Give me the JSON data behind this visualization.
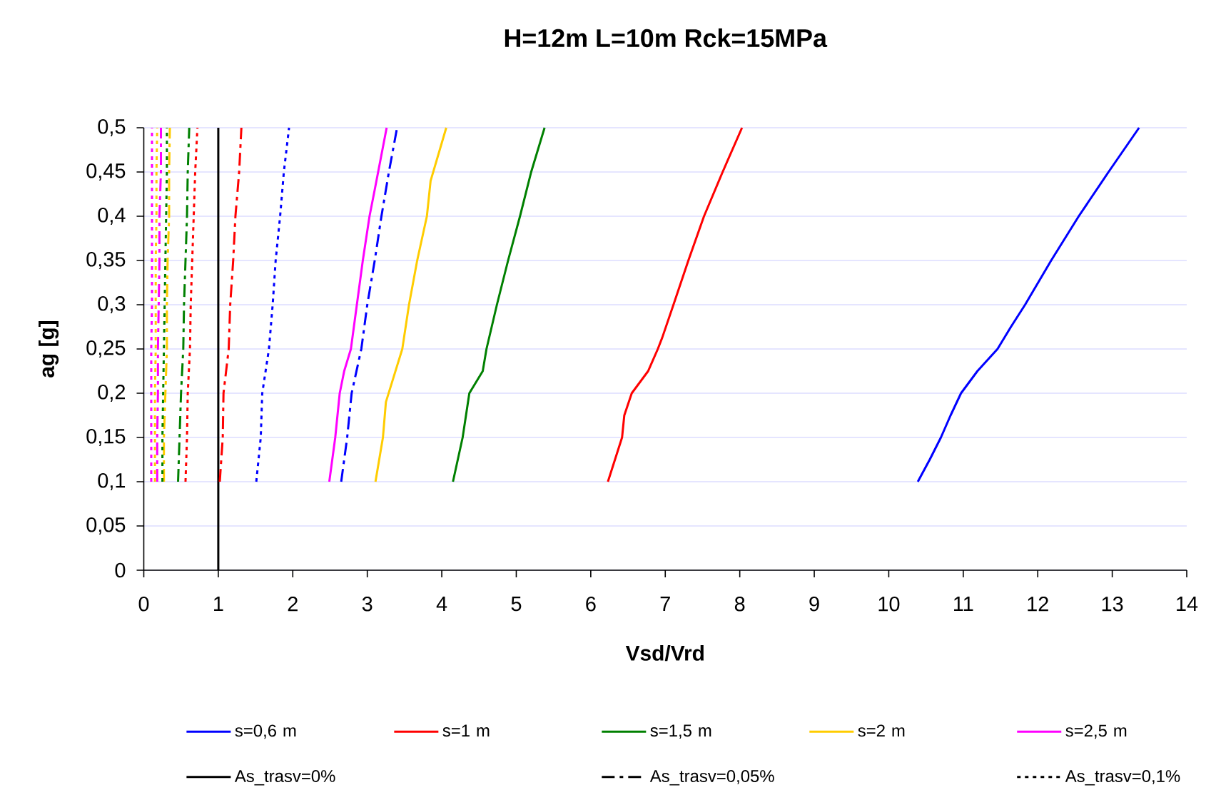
{
  "chart_data": {
    "type": "line",
    "title": "H=12m L=10m Rck=15MPa",
    "xlabel": "Vsd/Vrd",
    "ylabel": "ag [g]",
    "xlim": [
      0,
      14
    ],
    "ylim": [
      0,
      0.5
    ],
    "xticks": [
      0,
      1,
      2,
      3,
      4,
      5,
      6,
      7,
      8,
      9,
      10,
      11,
      12,
      13,
      14
    ],
    "yticks": [
      {
        "value": 0,
        "label": "0"
      },
      {
        "value": 0.05,
        "label": "0,05"
      },
      {
        "value": 0.1,
        "label": "0,1"
      },
      {
        "value": 0.15,
        "label": "0,15"
      },
      {
        "value": 0.2,
        "label": "0,2"
      },
      {
        "value": 0.25,
        "label": "0,25"
      },
      {
        "value": 0.3,
        "label": "0,3"
      },
      {
        "value": 0.35,
        "label": "0,35"
      },
      {
        "value": 0.4,
        "label": "0,4"
      },
      {
        "value": 0.45,
        "label": "0,45"
      },
      {
        "value": 0.5,
        "label": "0,5"
      }
    ],
    "grid": "y",
    "legend": "bottom",
    "marker": "none",
    "series": [
      {
        "name": "s=0,6 m",
        "color": "#0000ff",
        "line_style": "solid",
        "x": [
          10.39,
          10.55,
          10.7,
          10.83,
          10.97,
          11.19,
          11.46,
          11.64,
          11.83,
          12.18,
          12.55,
          12.95,
          13.36
        ],
        "values": [
          0.1,
          0.125,
          0.15,
          0.175,
          0.2,
          0.225,
          0.25,
          0.275,
          0.3,
          0.35,
          0.4,
          0.45,
          0.5
        ]
      },
      {
        "name": "s=1 m",
        "color": "#ff0000",
        "line_style": "solid",
        "x": [
          6.23,
          6.42,
          6.45,
          6.55,
          6.77,
          6.9,
          6.96,
          7.11,
          7.31,
          7.52,
          7.77,
          8.03
        ],
        "values": [
          0.1,
          0.15,
          0.175,
          0.2,
          0.225,
          0.25,
          0.263,
          0.3,
          0.35,
          0.4,
          0.45,
          0.5
        ]
      },
      {
        "name": "s=1,5 m",
        "color": "#008000",
        "line_style": "solid",
        "x": [
          4.15,
          4.28,
          4.37,
          4.55,
          4.6,
          4.74,
          4.89,
          5.05,
          5.2,
          5.38
        ],
        "values": [
          0.1,
          0.15,
          0.2,
          0.225,
          0.25,
          0.3,
          0.35,
          0.4,
          0.45,
          0.5
        ]
      },
      {
        "name": "s=2 m",
        "color": "#ffcc00",
        "line_style": "solid",
        "x": [
          3.11,
          3.21,
          3.25,
          3.47,
          3.56,
          3.67,
          3.8,
          3.85,
          4.06
        ],
        "values": [
          0.1,
          0.15,
          0.19,
          0.25,
          0.3,
          0.35,
          0.4,
          0.44,
          0.5
        ]
      },
      {
        "name": "s=2,5 m",
        "color": "#ff00ff",
        "line_style": "solid",
        "x": [
          2.49,
          2.57,
          2.63,
          2.69,
          2.78,
          2.86,
          2.94,
          3.03,
          3.1,
          3.26
        ],
        "values": [
          0.1,
          0.15,
          0.2,
          0.225,
          0.25,
          0.3,
          0.35,
          0.4,
          0.43,
          0.5
        ]
      },
      {
        "name": "As_trasv=0%",
        "color": "#000000",
        "line_style": "solid",
        "x": [
          1,
          1
        ],
        "values": [
          0,
          0.5
        ]
      },
      {
        "name": "As_trasv=0,05%",
        "color": "#000000",
        "line_style": "dashed",
        "x": [
          null,
          null
        ],
        "values": [
          null,
          null
        ]
      },
      {
        "name": "As_trasv=0,1%",
        "color": "#000000",
        "line_style": "dotted",
        "x": [
          null,
          null
        ],
        "values": [
          null,
          null
        ]
      },
      {
        "color": "#0000ff",
        "line_style": "dashed",
        "x": [
          2.65,
          2.73,
          2.79,
          2.92,
          3.0,
          3.1,
          3.19,
          3.29,
          3.4
        ],
        "values": [
          0.1,
          0.15,
          0.2,
          0.25,
          0.3,
          0.35,
          0.4,
          0.45,
          0.5
        ]
      },
      {
        "color": "#ff0000",
        "line_style": "dashed",
        "x": [
          1.02,
          1.06,
          1.07,
          1.14,
          1.16,
          1.2,
          1.23,
          1.28,
          1.31
        ],
        "values": [
          0.1,
          0.15,
          0.2,
          0.25,
          0.3,
          0.35,
          0.4,
          0.45,
          0.5
        ]
      },
      {
        "color": "#008000",
        "line_style": "dashed",
        "x": [
          0.46,
          0.48,
          0.5,
          0.53,
          0.54,
          0.56,
          0.58,
          0.59,
          0.61
        ],
        "values": [
          0.1,
          0.15,
          0.2,
          0.25,
          0.3,
          0.35,
          0.4,
          0.45,
          0.5
        ]
      },
      {
        "color": "#ffcc00",
        "line_style": "dashed",
        "x": [
          0.27,
          0.27,
          0.29,
          0.31,
          0.31,
          0.32,
          0.34,
          0.34,
          0.35
        ],
        "values": [
          0.1,
          0.15,
          0.2,
          0.25,
          0.3,
          0.35,
          0.4,
          0.45,
          0.5
        ]
      },
      {
        "color": "#ff00ff",
        "line_style": "dashed",
        "x": [
          0.18,
          0.18,
          0.19,
          0.19,
          0.2,
          0.21,
          0.21,
          0.23,
          0.23
        ],
        "values": [
          0.1,
          0.15,
          0.2,
          0.25,
          0.3,
          0.35,
          0.4,
          0.45,
          0.5
        ]
      },
      {
        "color": "#0000ff",
        "line_style": "dotted",
        "x": [
          1.51,
          1.57,
          1.59,
          1.68,
          1.73,
          1.77,
          1.83,
          1.88,
          1.95
        ],
        "values": [
          0.1,
          0.15,
          0.2,
          0.25,
          0.3,
          0.35,
          0.4,
          0.45,
          0.5
        ]
      },
      {
        "color": "#ff0000",
        "line_style": "dotted",
        "x": [
          0.56,
          0.58,
          0.59,
          0.62,
          0.63,
          0.65,
          0.67,
          0.69,
          0.72
        ],
        "values": [
          0.1,
          0.15,
          0.2,
          0.25,
          0.3,
          0.35,
          0.4,
          0.45,
          0.5
        ]
      },
      {
        "color": "#008000",
        "line_style": "dotted",
        "x": [
          0.25,
          0.25,
          0.26,
          0.27,
          0.28,
          0.29,
          0.3,
          0.31,
          0.31
        ],
        "values": [
          0.1,
          0.15,
          0.2,
          0.25,
          0.3,
          0.35,
          0.4,
          0.45,
          0.5
        ]
      },
      {
        "color": "#ffcc00",
        "line_style": "dotted",
        "x": [
          0.15,
          0.15,
          0.15,
          0.16,
          0.16,
          0.16,
          0.17,
          0.17,
          0.18
        ],
        "values": [
          0.1,
          0.15,
          0.2,
          0.25,
          0.3,
          0.35,
          0.4,
          0.45,
          0.5
        ]
      },
      {
        "color": "#ff00ff",
        "line_style": "dotted",
        "x": [
          0.1,
          0.1,
          0.1,
          0.1,
          0.11,
          0.11,
          0.11,
          0.11,
          0.11
        ],
        "values": [
          0.1,
          0.15,
          0.2,
          0.25,
          0.3,
          0.35,
          0.4,
          0.45,
          0.5
        ]
      }
    ]
  }
}
